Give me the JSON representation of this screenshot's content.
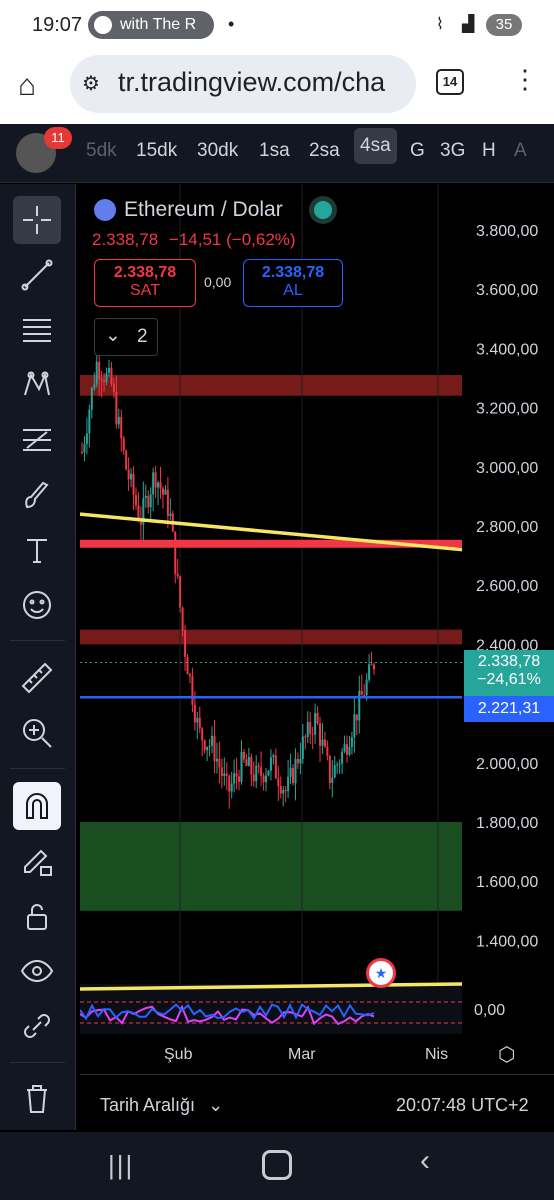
{
  "status_bar": {
    "time": "19:07",
    "media_text": "with The R",
    "dot": "•",
    "battery": "35"
  },
  "browser": {
    "url": "tr.tradingview.com/cha",
    "tab_count": "14"
  },
  "toolbar": {
    "notification_count": "11",
    "intervals": [
      "5dk",
      "15dk",
      "30dk",
      "1sa",
      "2sa",
      "4sa",
      "G",
      "3G",
      "H",
      "A"
    ],
    "active_interval": "4sa"
  },
  "symbol": {
    "name": "Ethereum / Dolar",
    "last": "2.338,78",
    "change": "−14,51 (−0,62%)",
    "sell_price": "2.338,78",
    "sell_label": "SAT",
    "buy_price": "2.338,78",
    "buy_label": "AL",
    "spread": "0,00",
    "indicator_count": "2"
  },
  "price_axis": {
    "labels": [
      "3.800,00",
      "3.600,00",
      "3.400,00",
      "3.200,00",
      "3.000,00",
      "2.800,00",
      "2.600,00",
      "2.400,00",
      "2.000,00",
      "1.800,00",
      "1.600,00",
      "1.400,00"
    ],
    "current_price": "2.338,78",
    "current_change": "−24,61%",
    "line_price": "2.221,31",
    "oscillator_zero": "0,00"
  },
  "time_axis": [
    "Şub",
    "Mar",
    "Nis"
  ],
  "footer": {
    "date_range": "Tarih Aralığı",
    "clock": "20:07:48 UTC+2"
  },
  "colors": {
    "up": "#26a69a",
    "down": "#f23645",
    "accent_blue": "#2962ff",
    "trendline": "#f5e663"
  },
  "chart_data": {
    "type": "candlestick",
    "series_name": "Ethereum / Dolar",
    "approx_close_path": [
      3050,
      3350,
      3280,
      3000,
      2820,
      2980,
      2850,
      2400,
      2100,
      2050,
      1900,
      2000,
      1950,
      2000,
      1900,
      2050,
      2150,
      1950,
      2050,
      2200,
      2339
    ],
    "horizontal_lines": [
      {
        "price": 2740,
        "color": "#f23645"
      },
      {
        "price": 2221.31,
        "color": "#2962ff"
      }
    ],
    "zones": [
      {
        "from": 3240,
        "to": 3310,
        "color": "#8b1e1e"
      },
      {
        "from": 2400,
        "to": 2450,
        "color": "#8b1e1e"
      },
      {
        "from": 1500,
        "to": 1800,
        "color": "#1e5a25"
      }
    ],
    "trendline": {
      "from": 2840,
      "to": 2720,
      "color": "#f5e663"
    },
    "ylim": [
      1200,
      3900
    ]
  }
}
